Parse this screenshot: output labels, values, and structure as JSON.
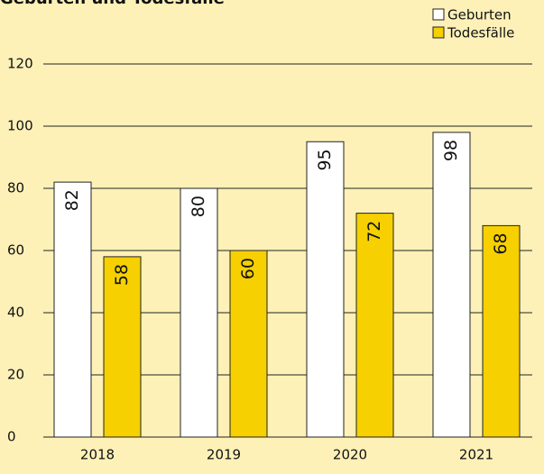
{
  "chart_data": {
    "type": "bar",
    "title": "Geburten und Todesfälle",
    "categories": [
      "2018",
      "2019",
      "2020",
      "2021"
    ],
    "series": [
      {
        "name": "Geburten",
        "color": "#ffffff",
        "values": [
          82,
          80,
          95,
          98
        ]
      },
      {
        "name": "Todesfälle",
        "color": "#f6d000",
        "values": [
          58,
          60,
          72,
          68
        ]
      }
    ],
    "ylim": [
      0,
      120
    ],
    "yticks": [
      0,
      20,
      40,
      60,
      80,
      100,
      120
    ],
    "grid": true,
    "legend": "top-right"
  }
}
